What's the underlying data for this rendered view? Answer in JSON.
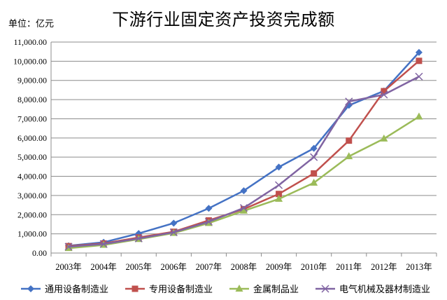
{
  "header": {
    "title": "下游行业固定资产投资完成额",
    "unit": "单位：亿元"
  },
  "chart_data": {
    "type": "line",
    "title": "下游行业固定资产投资完成额",
    "ylabel": "单位：亿元",
    "xlabel": "",
    "ylim": [
      0,
      11000
    ],
    "ytick_step": 1000,
    "yticks": [
      "0.00",
      "1,000.00",
      "2,000.00",
      "3,000.00",
      "4,000.00",
      "5,000.00",
      "6,000.00",
      "7,000.00",
      "8,000.00",
      "9,000.00",
      "10,000.00",
      "11,000.00"
    ],
    "categories": [
      "2003年",
      "2004年",
      "2005年",
      "2006年",
      "2007年",
      "2008年",
      "2009年",
      "2010年",
      "2011年",
      "2012年",
      "2013年"
    ],
    "grid": true,
    "legend_position": "bottom",
    "series": [
      {
        "name": "通用设备制造业",
        "color": "#4472C4",
        "marker": "diamond",
        "values": [
          380,
          560,
          1020,
          1560,
          2330,
          3250,
          4480,
          5460,
          7700,
          8450,
          10460
        ]
      },
      {
        "name": "专用设备制造业",
        "color": "#C0504D",
        "marker": "square",
        "values": [
          360,
          500,
          810,
          1110,
          1700,
          2290,
          3080,
          4150,
          5860,
          8440,
          10020
        ]
      },
      {
        "name": "金属制品业",
        "color": "#9BBB59",
        "marker": "triangle",
        "values": [
          250,
          420,
          720,
          1040,
          1560,
          2200,
          2820,
          3660,
          5040,
          5960,
          7110
        ]
      },
      {
        "name": "电气机械及器材制造业",
        "color": "#8064A2",
        "marker": "x",
        "values": [
          330,
          470,
          760,
          1080,
          1630,
          2350,
          3540,
          5000,
          7900,
          8260,
          9200
        ]
      }
    ]
  }
}
